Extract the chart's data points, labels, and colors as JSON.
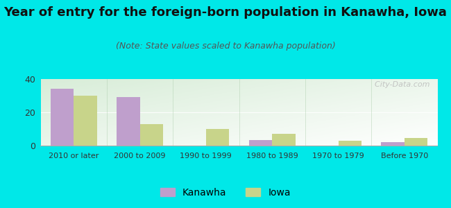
{
  "title": "Year of entry for the foreign-born population in Kanawha, Iowa",
  "subtitle": "(Note: State values scaled to Kanawha population)",
  "categories": [
    "2010 or later",
    "2000 to 2009",
    "1990 to 1999",
    "1980 to 1989",
    "1970 to 1979",
    "Before 1970"
  ],
  "kanawha_values": [
    34.0,
    29.0,
    0.0,
    3.5,
    0.0,
    2.0
  ],
  "iowa_values": [
    30.0,
    13.0,
    10.0,
    7.0,
    3.0,
    4.5
  ],
  "kanawha_color": "#bf9fcc",
  "iowa_color": "#c8d48a",
  "ylim": [
    0,
    40
  ],
  "yticks": [
    0,
    20,
    40
  ],
  "bg_outer": "#00e8e8",
  "bg_plot_topleft": "#d8edd8",
  "bg_plot_right": "#f8fff8",
  "bg_plot_bottom": "#ffffff",
  "watermark": "  City-Data.com",
  "bar_width": 0.35,
  "title_fontsize": 13,
  "subtitle_fontsize": 9,
  "legend_fontsize": 10
}
